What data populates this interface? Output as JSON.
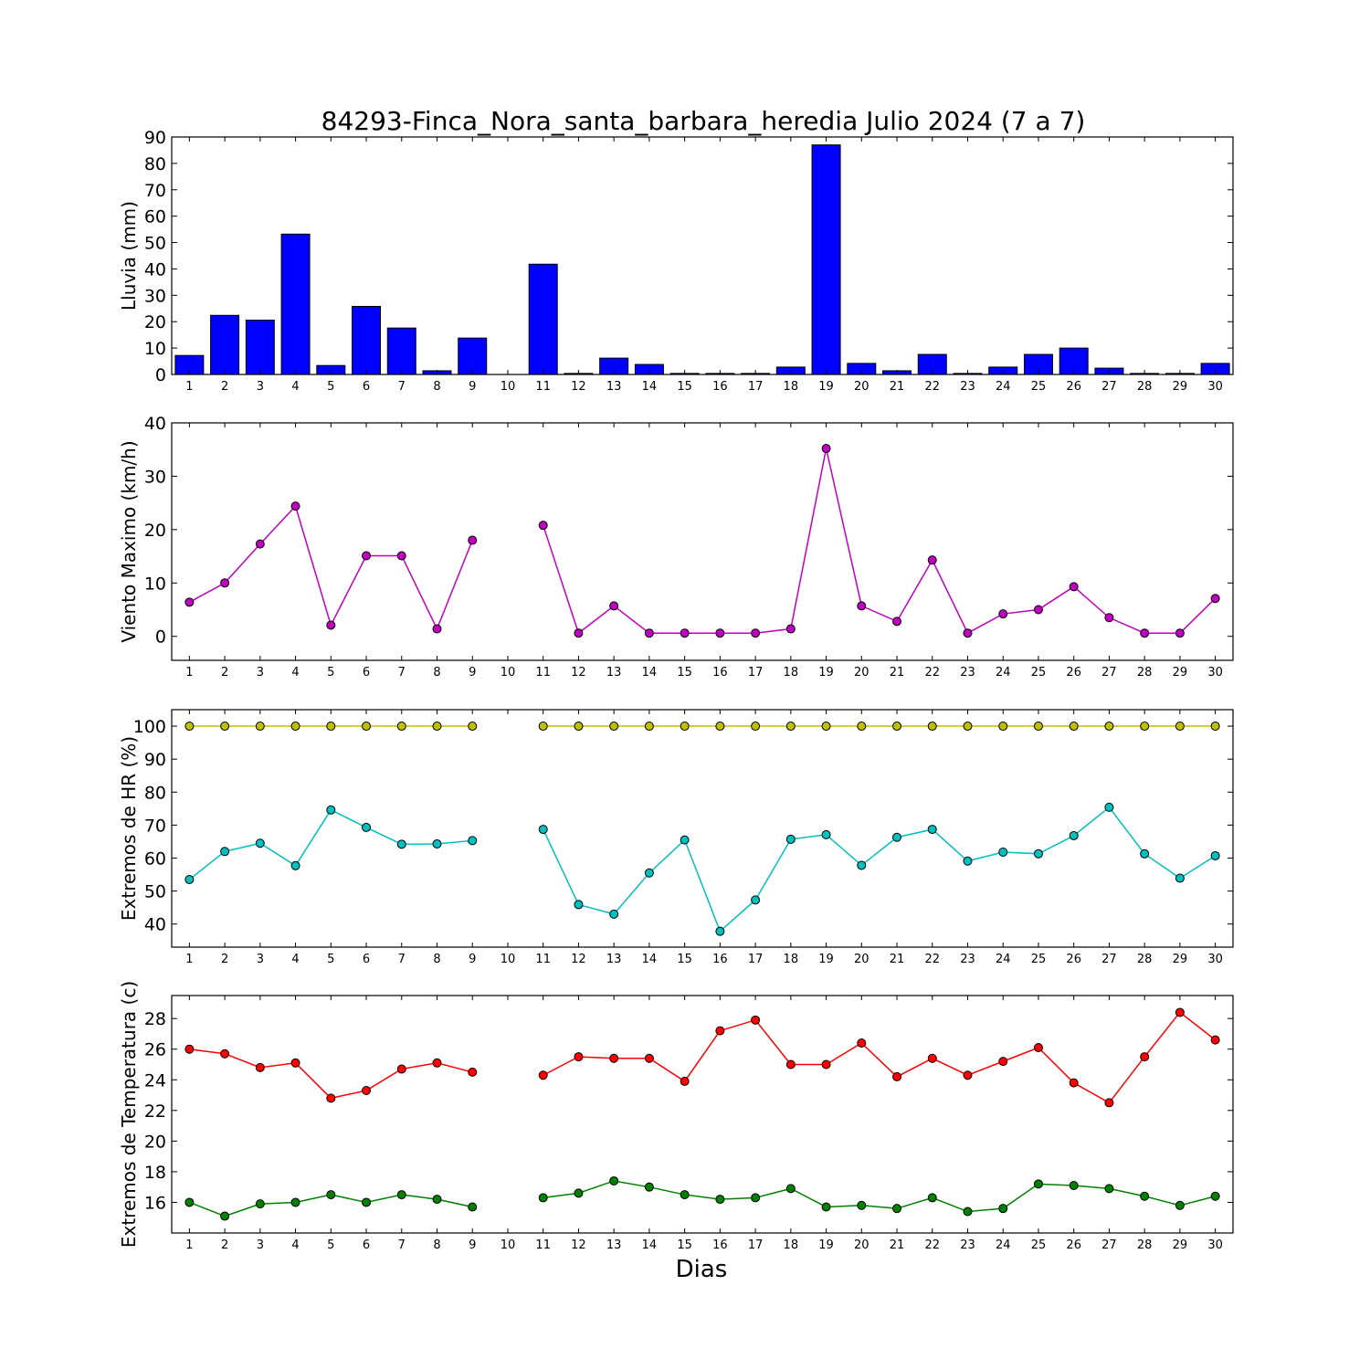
{
  "chart_data": {
    "type": "multi-panel",
    "title": "84293-Finca_Nora_santa_barbara_heredia Julio 2024  (7 a 7)",
    "xlabel": "Dias",
    "days": [
      1,
      2,
      3,
      4,
      5,
      6,
      7,
      8,
      9,
      10,
      11,
      12,
      13,
      14,
      15,
      16,
      17,
      18,
      19,
      20,
      21,
      22,
      23,
      24,
      25,
      26,
      27,
      28,
      29,
      30
    ],
    "panels": [
      {
        "type": "bar",
        "ylabel": "Lluvia (mm)",
        "ylim": [
          0,
          90
        ],
        "yticks": [
          0,
          10,
          20,
          30,
          40,
          50,
          60,
          70,
          80,
          90
        ],
        "color": "#0000ff",
        "series": [
          {
            "values": [
              7.2,
              22.4,
              20.6,
              53.2,
              3.4,
              25.8,
              17.6,
              1.4,
              13.8,
              0,
              41.8,
              0.4,
              6.2,
              3.8,
              0.4,
              0.4,
              0.4,
              2.8,
              87.0,
              4.2,
              1.4,
              7.6,
              0.4,
              2.8,
              7.6,
              10.0,
              2.4,
              0.4,
              0.4,
              4.2
            ]
          }
        ]
      },
      {
        "type": "line",
        "ylabel": "Viento Maximo (km/h)",
        "ylim": [
          -4.5,
          40
        ],
        "yticks": [
          0,
          10,
          20,
          30,
          40
        ],
        "series": [
          {
            "color": "#bf00bf",
            "values": [
              6.4,
              10.0,
              17.3,
              24.4,
              2.1,
              15.1,
              15.1,
              1.4,
              18.0,
              null,
              20.8,
              0.6,
              5.7,
              0.6,
              0.6,
              0.6,
              0.6,
              1.4,
              35.2,
              5.7,
              2.8,
              14.3,
              0.6,
              4.2,
              5.0,
              9.3,
              3.5,
              0.6,
              0.6,
              7.1
            ]
          }
        ]
      },
      {
        "type": "line",
        "ylabel": "Extremos de HR (%)",
        "ylim": [
          33,
          105
        ],
        "yticks": [
          40,
          50,
          60,
          70,
          80,
          90,
          100
        ],
        "series": [
          {
            "color": "#bfbf00",
            "values": [
              100,
              100,
              100,
              100,
              100,
              100,
              100,
              100,
              100,
              null,
              100,
              100,
              100,
              100,
              100,
              100,
              100,
              100,
              100,
              100,
              100,
              100,
              100,
              100,
              100,
              100,
              100,
              100,
              100,
              100
            ]
          },
          {
            "color": "#00bfbf",
            "values": [
              53.5,
              62.0,
              64.5,
              57.7,
              74.6,
              69.3,
              64.2,
              64.3,
              65.3,
              null,
              68.7,
              45.9,
              43.0,
              55.5,
              65.5,
              37.8,
              47.3,
              65.7,
              67.1,
              57.8,
              66.3,
              68.7,
              59.1,
              61.8,
              61.3,
              66.8,
              75.4,
              61.3,
              53.9,
              60.7
            ]
          }
        ]
      },
      {
        "type": "line",
        "ylabel": "Extremos de Temperatura (c)",
        "ylim": [
          14.0,
          29.5
        ],
        "yticks": [
          16,
          18,
          20,
          22,
          24,
          26,
          28
        ],
        "series": [
          {
            "color": "#ff0000",
            "values": [
              26.0,
              25.7,
              24.8,
              25.1,
              22.8,
              23.3,
              24.7,
              25.1,
              24.5,
              null,
              24.3,
              25.5,
              25.4,
              25.4,
              23.9,
              27.2,
              27.9,
              25.0,
              25.0,
              26.4,
              24.2,
              25.4,
              24.3,
              25.2,
              26.1,
              23.8,
              22.5,
              25.5,
              28.4,
              26.6
            ]
          },
          {
            "color": "#008000",
            "values": [
              16.0,
              15.1,
              15.9,
              16.0,
              16.5,
              16.0,
              16.5,
              16.2,
              15.7,
              null,
              16.3,
              16.6,
              17.4,
              17.0,
              16.5,
              16.2,
              16.3,
              16.9,
              15.7,
              15.8,
              15.6,
              16.3,
              15.4,
              15.6,
              17.2,
              17.1,
              16.9,
              16.4,
              15.8,
              16.4
            ]
          }
        ]
      }
    ]
  }
}
